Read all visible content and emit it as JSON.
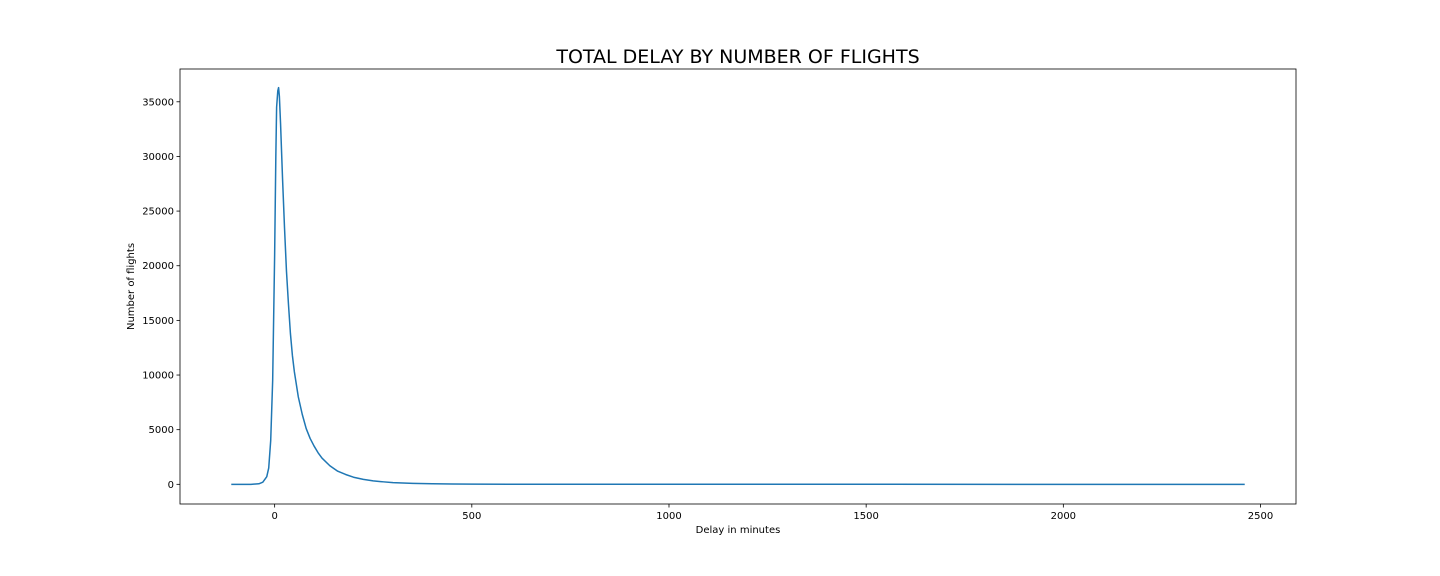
{
  "chart_data": {
    "type": "line",
    "title": "TOTAL DELAY BY NUMBER OF FLIGHTS",
    "xlabel": "Delay in minutes",
    "ylabel": "Number of flights",
    "xlim": [
      -240,
      2590
    ],
    "ylim": [
      -1800,
      38000
    ],
    "xticks": [
      0,
      500,
      1000,
      1500,
      2000,
      2500
    ],
    "yticks": [
      0,
      5000,
      10000,
      15000,
      20000,
      25000,
      30000,
      35000
    ],
    "grid": false,
    "line_color": "#1f77b4",
    "series": [
      {
        "x": [
          -110,
          -60,
          -40,
          -30,
          -20,
          -15,
          -10,
          -5,
          0,
          3,
          5,
          8,
          10,
          12,
          15,
          18,
          20,
          25,
          30,
          35,
          40,
          45,
          50,
          60,
          70,
          80,
          90,
          100,
          110,
          120,
          140,
          160,
          180,
          200,
          225,
          250,
          275,
          300,
          350,
          400,
          450,
          500,
          600,
          800,
          1000,
          1500,
          2000,
          2460
        ],
        "y": [
          0,
          0,
          50,
          200,
          700,
          1500,
          4000,
          9500,
          21000,
          30000,
          34500,
          36000,
          36300,
          35500,
          33000,
          30000,
          28000,
          23500,
          19500,
          16500,
          13800,
          11800,
          10300,
          8000,
          6400,
          5100,
          4200,
          3500,
          2900,
          2400,
          1700,
          1200,
          900,
          650,
          450,
          320,
          230,
          160,
          90,
          50,
          30,
          20,
          10,
          5,
          3,
          2,
          1,
          0
        ]
      }
    ]
  }
}
